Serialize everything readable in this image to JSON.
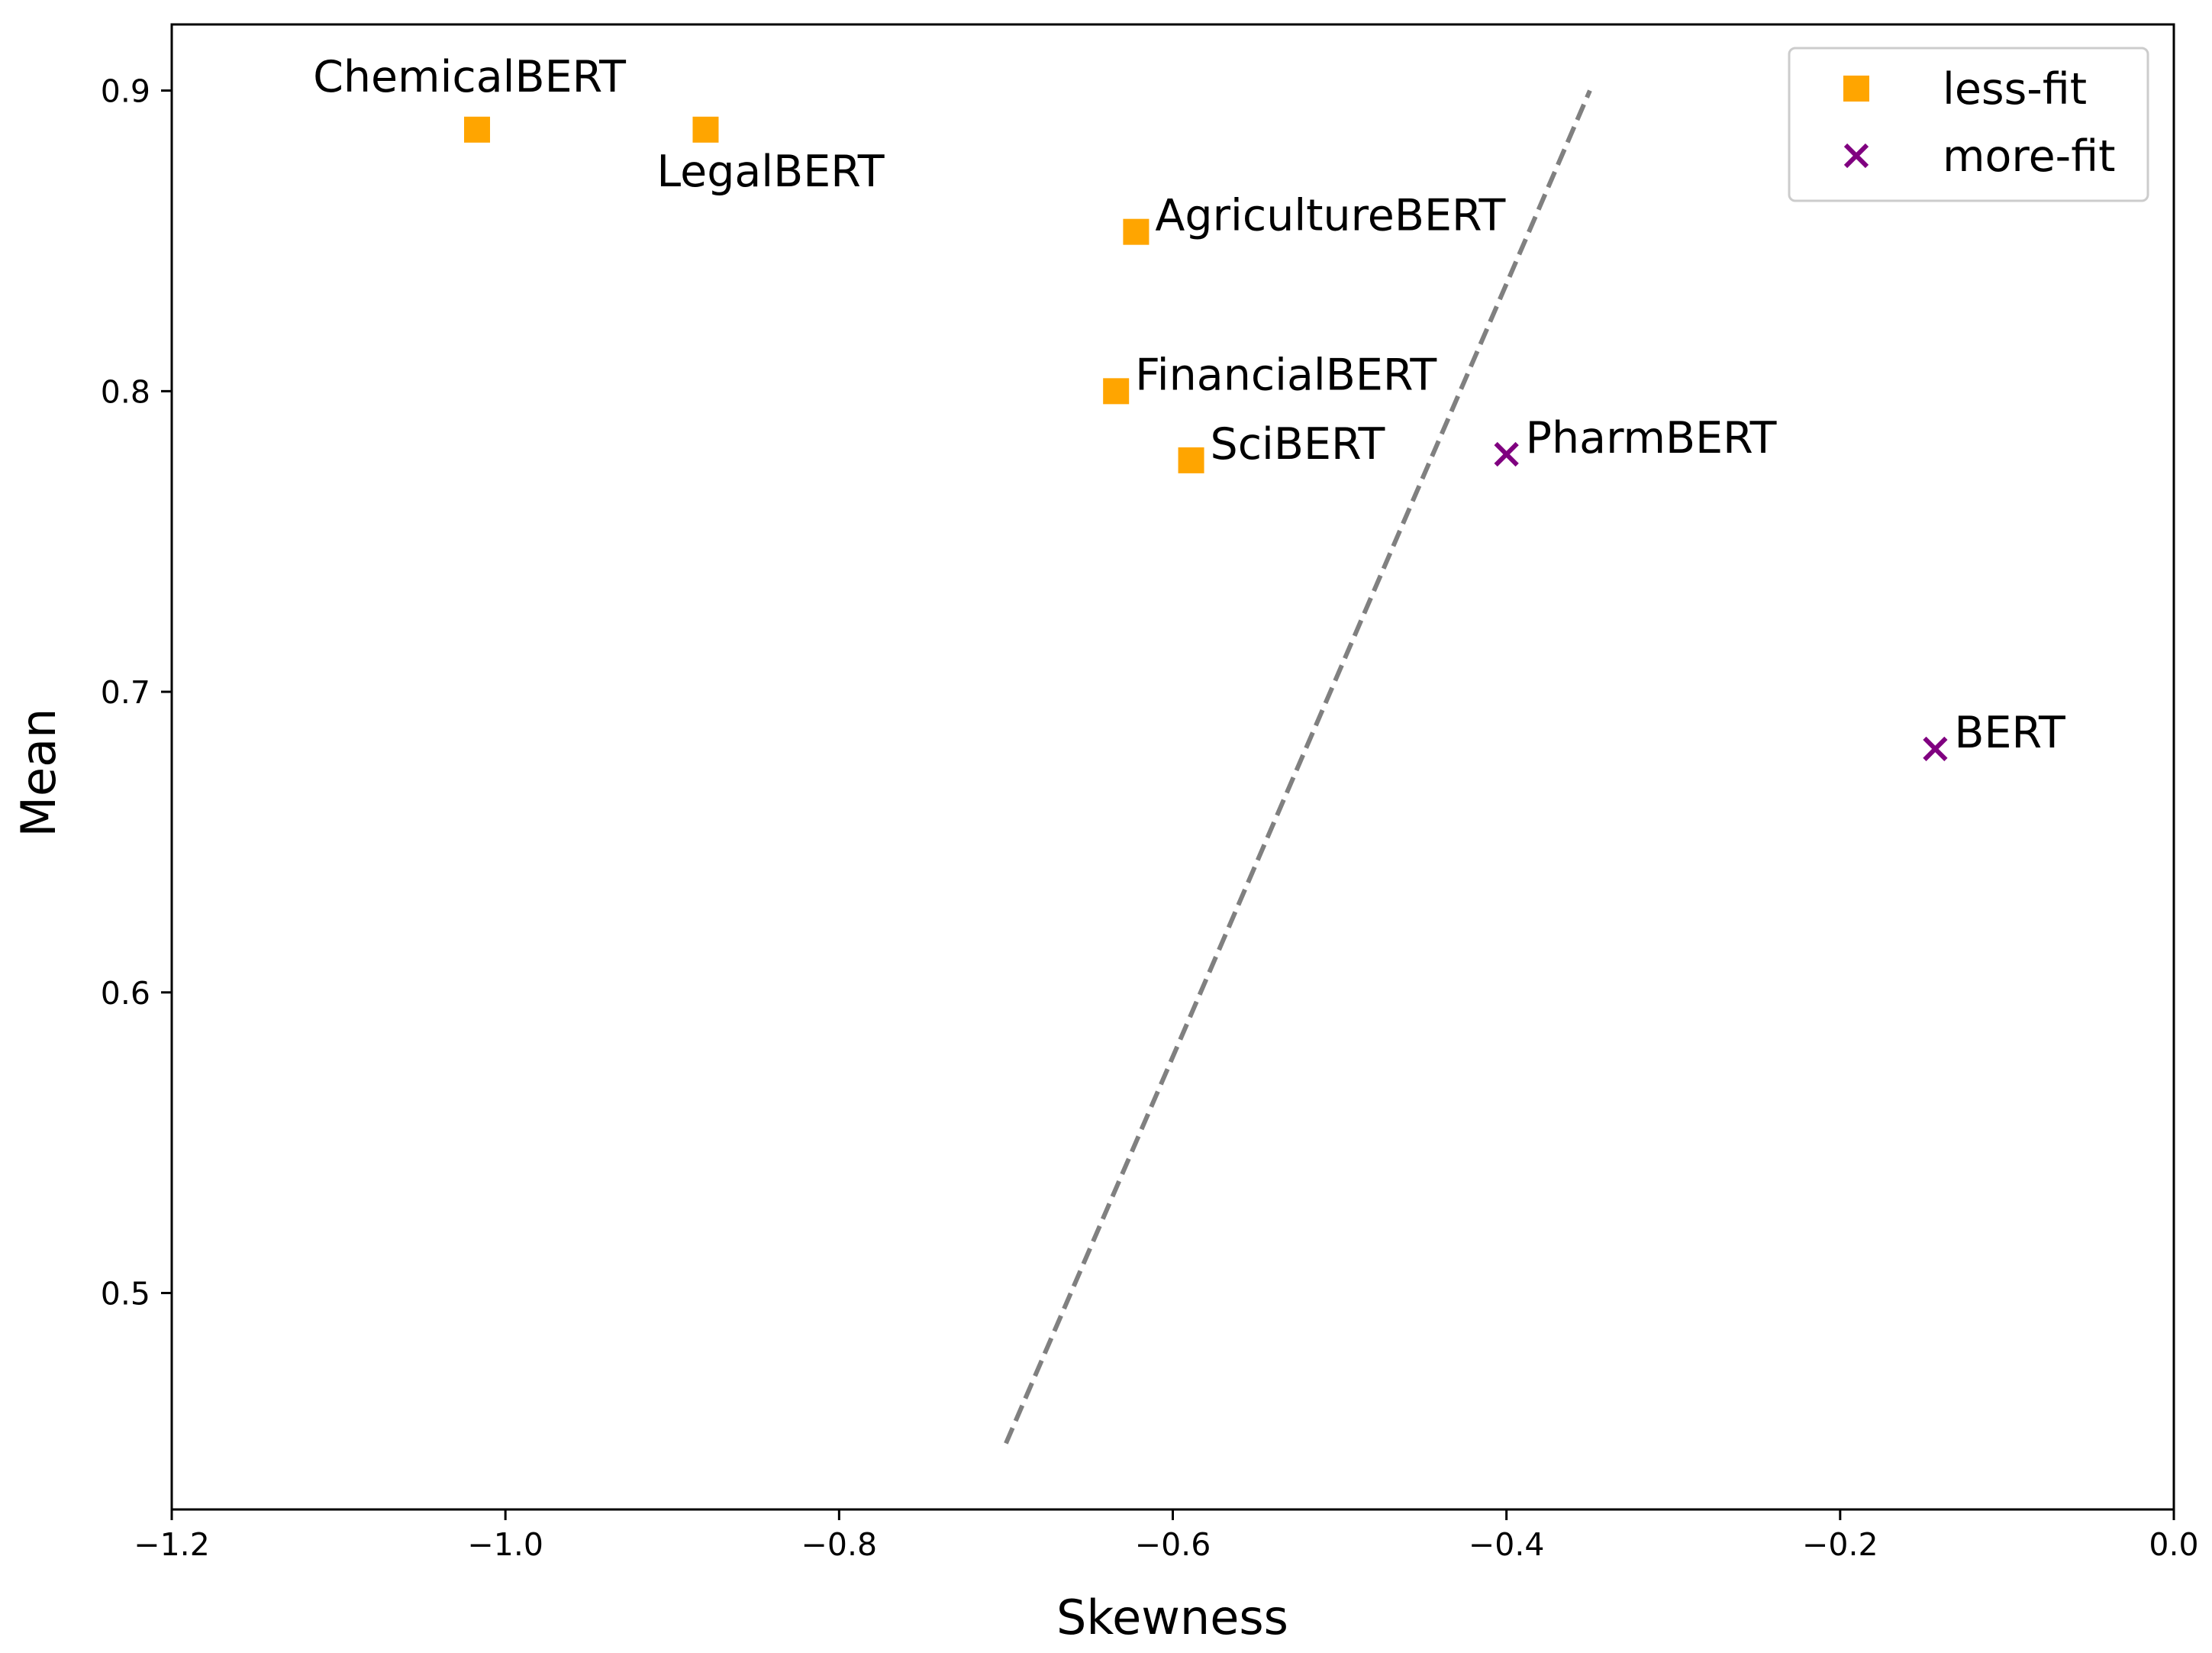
{
  "chart_data": {
    "type": "scatter",
    "xlabel": "Skewness",
    "ylabel": "Mean",
    "xlim": [
      -1.2,
      0.0
    ],
    "ylim": [
      0.428,
      0.922
    ],
    "x_ticks": [
      -1.2,
      -1.0,
      -0.8,
      -0.6,
      -0.4,
      -0.2,
      0.0
    ],
    "x_tick_labels": [
      "−1.2",
      "−1.0",
      "−0.8",
      "−0.6",
      "−0.4",
      "−0.2",
      "0.0"
    ],
    "y_ticks": [
      0.5,
      0.6,
      0.7,
      0.8,
      0.9
    ],
    "y_tick_labels": [
      "0.5",
      "0.6",
      "0.7",
      "0.8",
      "0.9"
    ],
    "grid": false,
    "legend_position": "top-right",
    "series": [
      {
        "name": "less-fit",
        "marker": "square",
        "color": "#FFA500",
        "points": [
          {
            "label": "ChemicalBERT",
            "x": -1.017,
            "y": 0.887
          },
          {
            "label": "LegalBERT",
            "x": -0.88,
            "y": 0.887
          },
          {
            "label": "AgricultureBERT",
            "x": -0.622,
            "y": 0.853
          },
          {
            "label": "FinancialBERT",
            "x": -0.634,
            "y": 0.8
          },
          {
            "label": "SciBERT",
            "x": -0.589,
            "y": 0.777
          }
        ]
      },
      {
        "name": "more-fit",
        "marker": "x",
        "color": "#800080",
        "points": [
          {
            "label": "PharmBERT",
            "x": -0.4,
            "y": 0.779
          },
          {
            "label": "BERT",
            "x": -0.143,
            "y": 0.681
          }
        ]
      }
    ],
    "reference_line": {
      "style": "dashed",
      "color": "#808080",
      "x": [
        -0.7,
        -0.35
      ],
      "y": [
        0.45,
        0.9
      ]
    }
  }
}
